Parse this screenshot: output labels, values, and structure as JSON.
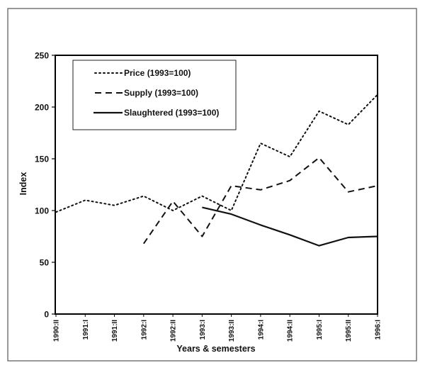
{
  "chart_data": {
    "type": "line",
    "title": "",
    "xlabel": "Years & semesters",
    "ylabel": "Index",
    "ylim": [
      0,
      250
    ],
    "yticks": [
      0,
      50,
      100,
      150,
      200,
      250
    ],
    "grid": false,
    "legend_position": "upper-left-inside",
    "categories": [
      "1990:II",
      "1991:I",
      "1991:II",
      "1992:I",
      "1992:II",
      "1993:I",
      "1993:II",
      "1994:I",
      "1994:II",
      "1995:I",
      "1995:II",
      "1996:I"
    ],
    "series": [
      {
        "name": "Price (1993=100)",
        "style": "dotted",
        "values": [
          98.5,
          110,
          105,
          114,
          100,
          114,
          100,
          165,
          152,
          196,
          183,
          212
        ]
      },
      {
        "name": "Supply (1993=100)",
        "style": "dashed",
        "values": [
          null,
          null,
          null,
          68,
          109,
          75,
          124,
          120,
          129,
          151,
          118,
          124
        ]
      },
      {
        "name": "Slaughtered (1993=100)",
        "style": "solid",
        "values": [
          null,
          null,
          null,
          null,
          null,
          103,
          96.5,
          86,
          76.5,
          66,
          74,
          75
        ]
      }
    ]
  },
  "colors": {
    "background": "#ffffff",
    "line": "#111111",
    "frame": "#555555"
  }
}
